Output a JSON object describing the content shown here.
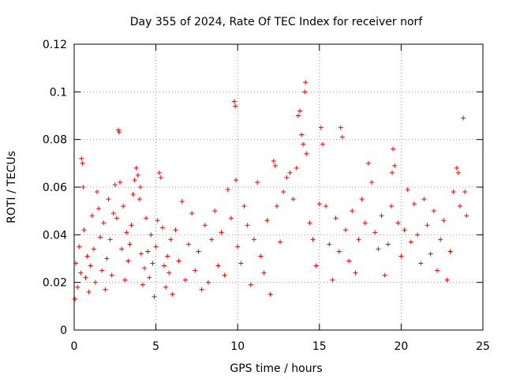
{
  "chart_data": {
    "type": "scatter",
    "title": "Day 355 of 2024, Rate Of TEC Index for receiver norf",
    "xlabel": "GPS time / hours",
    "ylabel": "ROTI / TECUs",
    "xlim": [
      0,
      25
    ],
    "ylim": [
      0,
      0.12
    ],
    "xticks": [
      0,
      5,
      10,
      15,
      20,
      25
    ],
    "yticks": [
      0,
      0.02,
      0.04,
      0.06,
      0.08,
      0.1,
      0.12
    ],
    "xtick_labels": [
      "0",
      "5",
      "10",
      "15",
      "20",
      "25"
    ],
    "ytick_labels": [
      "0",
      "0.02",
      "0.04",
      "0.06",
      "0.08",
      "0.1",
      "0.12"
    ],
    "grid": true,
    "marker": "+",
    "color": "#ff0000",
    "series": [
      {
        "name": "ROTI",
        "x": [
          0.05,
          0.1,
          0.2,
          0.3,
          0.4,
          0.45,
          0.5,
          0.55,
          0.6,
          0.7,
          0.8,
          0.9,
          1.0,
          1.1,
          1.2,
          1.3,
          1.4,
          1.5,
          1.6,
          1.7,
          1.8,
          1.9,
          2.0,
          2.1,
          2.2,
          2.3,
          2.4,
          2.5,
          2.6,
          2.7,
          2.75,
          2.8,
          2.9,
          3.0,
          3.1,
          3.2,
          3.3,
          3.4,
          3.5,
          3.6,
          3.7,
          3.8,
          3.9,
          4.0,
          4.05,
          4.1,
          4.2,
          4.3,
          4.4,
          4.5,
          4.6,
          4.7,
          4.8,
          4.9,
          5.0,
          5.1,
          5.2,
          5.3,
          5.4,
          5.5,
          5.6,
          5.7,
          5.8,
          5.9,
          6.0,
          6.2,
          6.4,
          6.6,
          6.8,
          7.0,
          7.2,
          7.4,
          7.6,
          7.8,
          8.0,
          8.2,
          8.4,
          8.6,
          8.8,
          9.0,
          9.2,
          9.4,
          9.6,
          9.8,
          9.85,
          9.9,
          10.0,
          10.2,
          10.4,
          10.6,
          10.8,
          11.0,
          11.2,
          11.4,
          11.6,
          11.8,
          12.0,
          12.2,
          12.3,
          12.4,
          12.6,
          12.8,
          13.0,
          13.2,
          13.4,
          13.6,
          13.7,
          13.8,
          13.9,
          14.0,
          14.1,
          14.15,
          14.2,
          14.4,
          14.6,
          14.8,
          15.0,
          15.1,
          15.2,
          15.4,
          15.6,
          15.8,
          16.0,
          16.2,
          16.3,
          16.4,
          16.6,
          16.8,
          17.0,
          17.2,
          17.4,
          17.6,
          17.8,
          18.0,
          18.2,
          18.4,
          18.6,
          18.8,
          19.0,
          19.2,
          19.4,
          19.45,
          19.5,
          19.6,
          19.8,
          20.0,
          20.2,
          20.4,
          20.6,
          20.8,
          21.0,
          21.2,
          21.4,
          21.6,
          21.8,
          22.0,
          22.2,
          22.4,
          22.6,
          22.8,
          23.0,
          23.2,
          23.4,
          23.5,
          23.6,
          23.8,
          23.9,
          24.0
        ],
        "y": [
          0.013,
          0.028,
          0.018,
          0.035,
          0.024,
          0.072,
          0.07,
          0.06,
          0.042,
          0.022,
          0.031,
          0.016,
          0.027,
          0.048,
          0.034,
          0.02,
          0.058,
          0.051,
          0.039,
          0.025,
          0.045,
          0.017,
          0.03,
          0.055,
          0.038,
          0.023,
          0.049,
          0.061,
          0.047,
          0.084,
          0.083,
          0.062,
          0.034,
          0.052,
          0.021,
          0.041,
          0.029,
          0.036,
          0.044,
          0.057,
          0.063,
          0.068,
          0.065,
          0.055,
          0.06,
          0.032,
          0.019,
          0.026,
          0.047,
          0.033,
          0.022,
          0.04,
          0.028,
          0.014,
          0.035,
          0.046,
          0.066,
          0.064,
          0.043,
          0.027,
          0.018,
          0.031,
          0.024,
          0.038,
          0.015,
          0.042,
          0.029,
          0.054,
          0.021,
          0.036,
          0.049,
          0.025,
          0.033,
          0.017,
          0.044,
          0.02,
          0.038,
          0.05,
          0.027,
          0.041,
          0.023,
          0.059,
          0.047,
          0.096,
          0.094,
          0.063,
          0.035,
          0.028,
          0.052,
          0.044,
          0.019,
          0.038,
          0.062,
          0.031,
          0.024,
          0.046,
          0.015,
          0.071,
          0.069,
          0.052,
          0.037,
          0.058,
          0.064,
          0.066,
          0.055,
          0.068,
          0.09,
          0.092,
          0.082,
          0.078,
          0.1,
          0.104,
          0.074,
          0.045,
          0.038,
          0.027,
          0.053,
          0.085,
          0.078,
          0.052,
          0.036,
          0.021,
          0.047,
          0.033,
          0.085,
          0.081,
          0.042,
          0.029,
          0.05,
          0.024,
          0.038,
          0.055,
          0.045,
          0.07,
          0.062,
          0.041,
          0.034,
          0.048,
          0.023,
          0.036,
          0.052,
          0.066,
          0.076,
          0.069,
          0.045,
          0.031,
          0.042,
          0.059,
          0.037,
          0.053,
          0.04,
          0.028,
          0.055,
          0.044,
          0.032,
          0.05,
          0.025,
          0.038,
          0.046,
          0.021,
          0.033,
          0.058,
          0.068,
          0.066,
          0.052,
          0.089,
          0.058,
          0.048
        ]
      }
    ]
  }
}
